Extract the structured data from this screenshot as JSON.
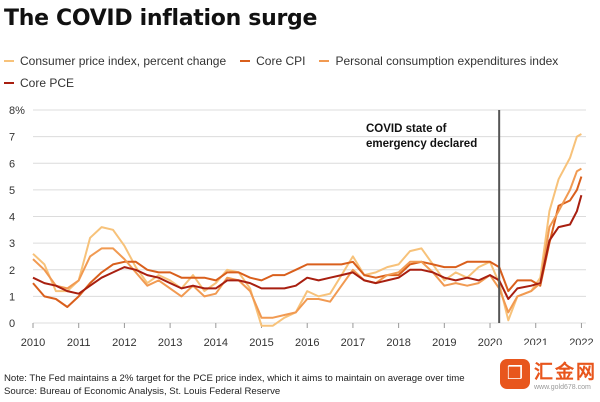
{
  "title": "The COVID inflation surge",
  "legend": [
    {
      "label": "Consumer price index, percent change",
      "color": "#f7c27a"
    },
    {
      "label": "Core CPI",
      "color": "#d95f1c"
    },
    {
      "label": "Personal consumption expenditures index",
      "color": "#f19a52"
    },
    {
      "label": "Core PCE",
      "color": "#a81f10"
    }
  ],
  "annotation": {
    "line1": "COVID state of",
    "line2": "emergency declared",
    "date": 2020.2
  },
  "note": {
    "line1": "Note: The Fed maintains a 2% target for the PCE price index, which it aims to maintain on average over time",
    "line2": "Source: Bureau of Economic Analysis, St. Louis Federal Reserve"
  },
  "watermark": {
    "logo": "❒",
    "text": "汇金网",
    "url": "www.gold678.com"
  },
  "chart_data": {
    "type": "line",
    "xlim": [
      2010,
      2022.1
    ],
    "ylim": [
      0,
      8
    ],
    "y_ticks": [
      "0",
      "1",
      "2",
      "3",
      "4",
      "5",
      "6",
      "7",
      "8%"
    ],
    "x_ticks": [
      "2010",
      "2011",
      "2012",
      "2013",
      "2014",
      "2015",
      "2016",
      "2017",
      "2018",
      "2019",
      "2020",
      "2021",
      "2022"
    ],
    "grid": true,
    "series": [
      {
        "name": "Consumer price index, percent change",
        "color": "#f7c27a",
        "points": [
          [
            2010.0,
            2.6
          ],
          [
            2010.25,
            2.2
          ],
          [
            2010.5,
            1.2
          ],
          [
            2010.75,
            1.2
          ],
          [
            2011.0,
            1.6
          ],
          [
            2011.25,
            3.2
          ],
          [
            2011.5,
            3.6
          ],
          [
            2011.75,
            3.5
          ],
          [
            2012.0,
            2.9
          ],
          [
            2012.25,
            2.1
          ],
          [
            2012.5,
            1.5
          ],
          [
            2012.75,
            1.8
          ],
          [
            2013.0,
            1.6
          ],
          [
            2013.25,
            1.3
          ],
          [
            2013.5,
            1.8
          ],
          [
            2013.75,
            1.2
          ],
          [
            2014.0,
            1.5
          ],
          [
            2014.25,
            2.0
          ],
          [
            2014.5,
            1.9
          ],
          [
            2014.75,
            1.3
          ],
          [
            2015.0,
            -0.1
          ],
          [
            2015.25,
            -0.1
          ],
          [
            2015.5,
            0.2
          ],
          [
            2015.75,
            0.4
          ],
          [
            2016.0,
            1.2
          ],
          [
            2016.25,
            1.0
          ],
          [
            2016.5,
            1.1
          ],
          [
            2016.75,
            1.8
          ],
          [
            2017.0,
            2.5
          ],
          [
            2017.25,
            1.8
          ],
          [
            2017.5,
            1.9
          ],
          [
            2017.75,
            2.1
          ],
          [
            2018.0,
            2.2
          ],
          [
            2018.25,
            2.7
          ],
          [
            2018.5,
            2.8
          ],
          [
            2018.75,
            2.2
          ],
          [
            2019.0,
            1.6
          ],
          [
            2019.25,
            1.9
          ],
          [
            2019.5,
            1.7
          ],
          [
            2019.75,
            2.1
          ],
          [
            2020.0,
            2.3
          ],
          [
            2020.2,
            1.5
          ],
          [
            2020.4,
            0.1
          ],
          [
            2020.6,
            1.0
          ],
          [
            2020.9,
            1.2
          ],
          [
            2021.1,
            1.7
          ],
          [
            2021.3,
            4.2
          ],
          [
            2021.5,
            5.4
          ],
          [
            2021.75,
            6.2
          ],
          [
            2021.9,
            7.0
          ],
          [
            2022.0,
            7.1
          ]
        ]
      },
      {
        "name": "Core CPI",
        "color": "#d95f1c",
        "points": [
          [
            2010.0,
            1.5
          ],
          [
            2010.25,
            1.0
          ],
          [
            2010.5,
            0.9
          ],
          [
            2010.75,
            0.6
          ],
          [
            2011.0,
            1.0
          ],
          [
            2011.25,
            1.5
          ],
          [
            2011.5,
            1.9
          ],
          [
            2011.75,
            2.2
          ],
          [
            2012.0,
            2.3
          ],
          [
            2012.25,
            2.3
          ],
          [
            2012.5,
            2.0
          ],
          [
            2012.75,
            1.9
          ],
          [
            2013.0,
            1.9
          ],
          [
            2013.25,
            1.7
          ],
          [
            2013.5,
            1.7
          ],
          [
            2013.75,
            1.7
          ],
          [
            2014.0,
            1.6
          ],
          [
            2014.25,
            1.9
          ],
          [
            2014.5,
            1.9
          ],
          [
            2014.75,
            1.7
          ],
          [
            2015.0,
            1.6
          ],
          [
            2015.25,
            1.8
          ],
          [
            2015.5,
            1.8
          ],
          [
            2015.75,
            2.0
          ],
          [
            2016.0,
            2.2
          ],
          [
            2016.25,
            2.2
          ],
          [
            2016.5,
            2.2
          ],
          [
            2016.75,
            2.2
          ],
          [
            2017.0,
            2.3
          ],
          [
            2017.25,
            1.8
          ],
          [
            2017.5,
            1.7
          ],
          [
            2017.75,
            1.8
          ],
          [
            2018.0,
            1.8
          ],
          [
            2018.25,
            2.2
          ],
          [
            2018.5,
            2.3
          ],
          [
            2018.75,
            2.2
          ],
          [
            2019.0,
            2.1
          ],
          [
            2019.25,
            2.1
          ],
          [
            2019.5,
            2.3
          ],
          [
            2019.75,
            2.3
          ],
          [
            2020.0,
            2.3
          ],
          [
            2020.2,
            2.1
          ],
          [
            2020.4,
            1.2
          ],
          [
            2020.6,
            1.6
          ],
          [
            2020.9,
            1.6
          ],
          [
            2021.1,
            1.4
          ],
          [
            2021.3,
            3.0
          ],
          [
            2021.5,
            4.4
          ],
          [
            2021.75,
            4.6
          ],
          [
            2021.9,
            5.0
          ],
          [
            2022.0,
            5.5
          ]
        ]
      },
      {
        "name": "Personal consumption expenditures index",
        "color": "#f19a52",
        "points": [
          [
            2010.0,
            2.4
          ],
          [
            2010.25,
            2.0
          ],
          [
            2010.5,
            1.4
          ],
          [
            2010.75,
            1.3
          ],
          [
            2011.0,
            1.6
          ],
          [
            2011.25,
            2.5
          ],
          [
            2011.5,
            2.8
          ],
          [
            2011.75,
            2.8
          ],
          [
            2012.0,
            2.4
          ],
          [
            2012.25,
            1.9
          ],
          [
            2012.5,
            1.4
          ],
          [
            2012.75,
            1.6
          ],
          [
            2013.0,
            1.3
          ],
          [
            2013.25,
            1.0
          ],
          [
            2013.5,
            1.4
          ],
          [
            2013.75,
            1.0
          ],
          [
            2014.0,
            1.1
          ],
          [
            2014.25,
            1.7
          ],
          [
            2014.5,
            1.6
          ],
          [
            2014.75,
            1.2
          ],
          [
            2015.0,
            0.2
          ],
          [
            2015.25,
            0.2
          ],
          [
            2015.5,
            0.3
          ],
          [
            2015.75,
            0.4
          ],
          [
            2016.0,
            0.9
          ],
          [
            2016.25,
            0.9
          ],
          [
            2016.5,
            0.8
          ],
          [
            2016.75,
            1.4
          ],
          [
            2017.0,
            2.0
          ],
          [
            2017.25,
            1.6
          ],
          [
            2017.5,
            1.5
          ],
          [
            2017.75,
            1.8
          ],
          [
            2018.0,
            1.9
          ],
          [
            2018.25,
            2.3
          ],
          [
            2018.5,
            2.3
          ],
          [
            2018.75,
            1.9
          ],
          [
            2019.0,
            1.4
          ],
          [
            2019.25,
            1.5
          ],
          [
            2019.5,
            1.4
          ],
          [
            2019.75,
            1.5
          ],
          [
            2020.0,
            1.8
          ],
          [
            2020.2,
            1.3
          ],
          [
            2020.4,
            0.4
          ],
          [
            2020.6,
            1.0
          ],
          [
            2020.9,
            1.2
          ],
          [
            2021.1,
            1.5
          ],
          [
            2021.3,
            3.6
          ],
          [
            2021.5,
            4.2
          ],
          [
            2021.75,
            5.0
          ],
          [
            2021.9,
            5.7
          ],
          [
            2022.0,
            5.8
          ]
        ]
      },
      {
        "name": "Core PCE",
        "color": "#a81f10",
        "points": [
          [
            2010.0,
            1.7
          ],
          [
            2010.25,
            1.5
          ],
          [
            2010.5,
            1.4
          ],
          [
            2010.75,
            1.2
          ],
          [
            2011.0,
            1.1
          ],
          [
            2011.25,
            1.4
          ],
          [
            2011.5,
            1.7
          ],
          [
            2011.75,
            1.9
          ],
          [
            2012.0,
            2.1
          ],
          [
            2012.25,
            2.0
          ],
          [
            2012.5,
            1.8
          ],
          [
            2012.75,
            1.7
          ],
          [
            2013.0,
            1.5
          ],
          [
            2013.25,
            1.3
          ],
          [
            2013.5,
            1.4
          ],
          [
            2013.75,
            1.3
          ],
          [
            2014.0,
            1.3
          ],
          [
            2014.25,
            1.6
          ],
          [
            2014.5,
            1.6
          ],
          [
            2014.75,
            1.5
          ],
          [
            2015.0,
            1.3
          ],
          [
            2015.25,
            1.3
          ],
          [
            2015.5,
            1.3
          ],
          [
            2015.75,
            1.4
          ],
          [
            2016.0,
            1.7
          ],
          [
            2016.25,
            1.6
          ],
          [
            2016.5,
            1.7
          ],
          [
            2016.75,
            1.8
          ],
          [
            2017.0,
            1.9
          ],
          [
            2017.25,
            1.6
          ],
          [
            2017.5,
            1.5
          ],
          [
            2017.75,
            1.6
          ],
          [
            2018.0,
            1.7
          ],
          [
            2018.25,
            2.0
          ],
          [
            2018.5,
            2.0
          ],
          [
            2018.75,
            1.9
          ],
          [
            2019.0,
            1.7
          ],
          [
            2019.25,
            1.6
          ],
          [
            2019.5,
            1.7
          ],
          [
            2019.75,
            1.6
          ],
          [
            2020.0,
            1.8
          ],
          [
            2020.2,
            1.6
          ],
          [
            2020.4,
            0.9
          ],
          [
            2020.6,
            1.3
          ],
          [
            2020.9,
            1.4
          ],
          [
            2021.1,
            1.5
          ],
          [
            2021.3,
            3.1
          ],
          [
            2021.5,
            3.6
          ],
          [
            2021.75,
            3.7
          ],
          [
            2021.9,
            4.2
          ],
          [
            2022.0,
            4.8
          ]
        ]
      }
    ]
  }
}
